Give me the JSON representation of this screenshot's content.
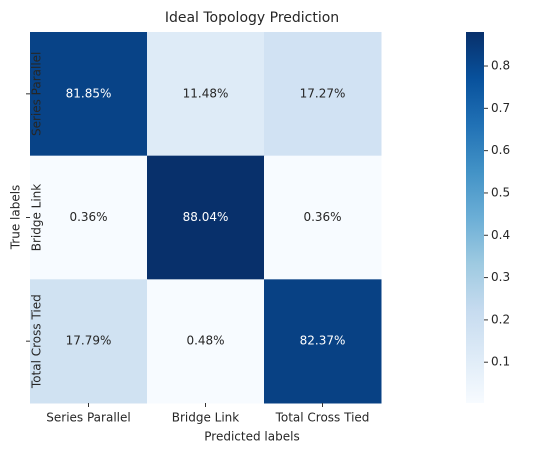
{
  "chart_data": {
    "type": "heatmap",
    "title": "Ideal Topology Prediction",
    "x_label": "Predicted labels",
    "y_label": "True labels",
    "x_categories": [
      "Series Parallel",
      "Bridge Link",
      "Total Cross Tied"
    ],
    "y_categories": [
      "Series Parallel",
      "Bridge Link",
      "Total Cross Tied"
    ],
    "values": [
      [
        0.8185,
        0.1148,
        0.1727
      ],
      [
        0.0036,
        0.8804,
        0.0036
      ],
      [
        0.1779,
        0.0048,
        0.8237
      ]
    ],
    "value_labels": [
      [
        "81.85%",
        "11.48%",
        "17.27%"
      ],
      [
        "0.36%",
        "88.04%",
        "0.36%"
      ],
      [
        "17.79%",
        "0.48%",
        "82.37%"
      ]
    ],
    "colormap": "Blues",
    "zlim": [
      0.0036,
      0.8804
    ],
    "zticks": [
      0.1,
      0.2,
      0.3,
      0.4,
      0.5,
      0.6,
      0.7,
      0.8
    ]
  }
}
